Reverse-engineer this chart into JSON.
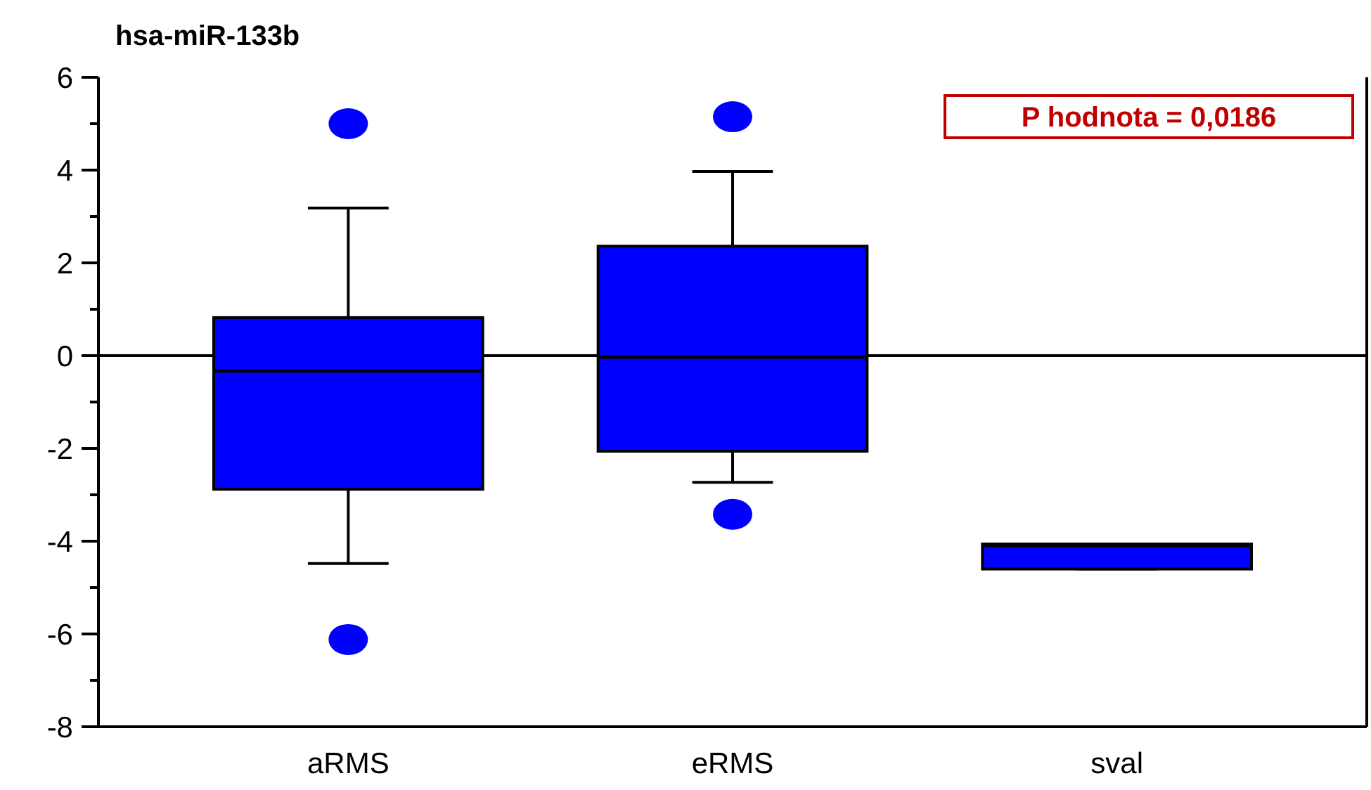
{
  "chart_data": {
    "type": "box",
    "title": "hsa-miR-133b",
    "categories": [
      "aRMS",
      "eRMS",
      "sval"
    ],
    "boxes": [
      {
        "low": -4.48,
        "q1": -2.88,
        "median": -0.33,
        "q3": 0.82,
        "high": 3.18,
        "outliers": [
          5.0,
          -6.12
        ]
      },
      {
        "low": -2.73,
        "q1": -2.06,
        "median": -0.03,
        "q3": 2.36,
        "high": 3.97,
        "outliers": [
          5.15,
          -3.42
        ]
      },
      {
        "low": -4.6,
        "q1": -4.6,
        "median": -4.09,
        "q3": -4.06,
        "high": -4.06
      }
    ],
    "color": "#0000ff",
    "ylim": [
      -8,
      6
    ],
    "yticks": [
      -8,
      {
        "value": -7,
        "label": null
      },
      -6,
      {
        "value": -5,
        "label": null
      },
      -4,
      {
        "value": -3,
        "label": null
      },
      -2,
      {
        "value": -1,
        "label": null
      },
      0,
      {
        "value": 1,
        "label": null
      },
      2,
      {
        "value": 3,
        "label": null
      },
      4,
      {
        "value": 5,
        "label": null
      },
      6
    ],
    "ref_lines": [
      {
        "axis": "y",
        "value": 0
      }
    ],
    "annotations": [
      "P hodnota = 0,0186"
    ],
    "grid": false
  }
}
